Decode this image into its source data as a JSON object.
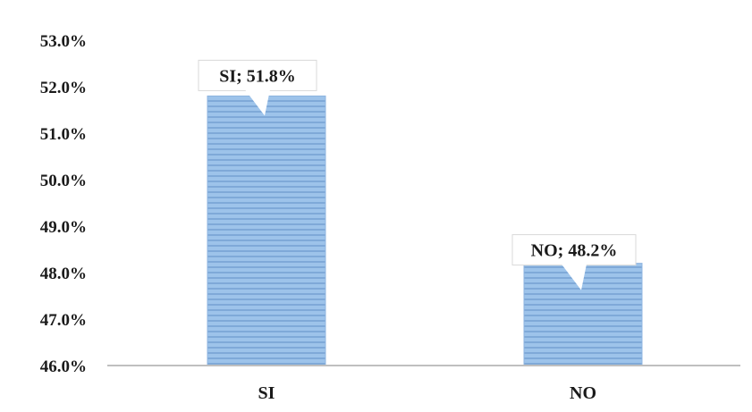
{
  "chart_data": {
    "type": "bar",
    "title": "",
    "xlabel": "",
    "ylabel": "",
    "categories": [
      "SI",
      "NO"
    ],
    "values": [
      51.8,
      48.2
    ],
    "value_suffix": "%",
    "data_labels": [
      "SI; 51.8%",
      "NO; 48.2%"
    ],
    "ylim": [
      46.0,
      53.0
    ],
    "y_ticks": [
      46.0,
      47.0,
      48.0,
      49.0,
      50.0,
      51.0,
      52.0,
      53.0
    ],
    "y_tick_labels": [
      "46.0%",
      "47.0%",
      "48.0%",
      "49.0%",
      "50.0%",
      "51.0%",
      "52.0%",
      "53.0%"
    ],
    "grid": false,
    "legend": "none",
    "colors": {
      "bar_fill": "#9dc3ea",
      "bar_stripe": "#7fa9d8",
      "bar_edge": "#8fb5e0",
      "axis": "#bfbfbf",
      "callout_border": "#d9d9d9",
      "text": "#1a1a1a"
    }
  }
}
